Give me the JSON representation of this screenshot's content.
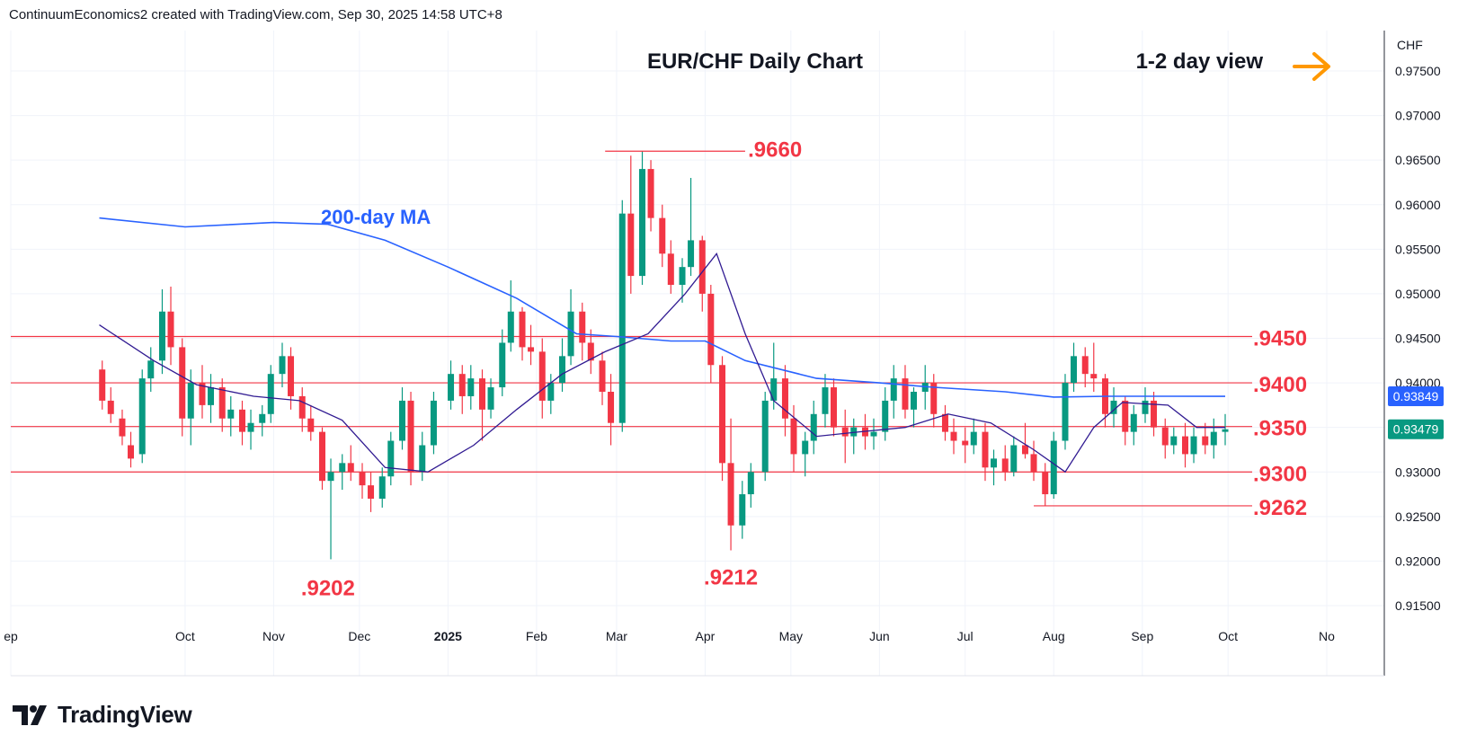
{
  "header": {
    "credit": "ContinuumEconomics2 created with TradingView.com, Sep 30, 2025 14:58 UTC+8"
  },
  "chart": {
    "title": "EUR/CHF Daily Chart",
    "view_label": "1-2 day view",
    "ma_label": "200-day MA",
    "currency": "CHF"
  },
  "footer": {
    "brand": "TradingView"
  },
  "chart_data": {
    "type": "candlestick",
    "title": "EUR/CHF Daily Chart",
    "ylabel": "CHF",
    "ylim": [
      0.913,
      0.9785
    ],
    "y_ticks": [
      "0.97500",
      "0.97000",
      "0.96500",
      "0.96000",
      "0.95500",
      "0.95000",
      "0.94500",
      "0.94000",
      "0.93500",
      "0.93000",
      "0.92500",
      "0.92000",
      "0.91500"
    ],
    "x_ticks": [
      "ep",
      "Oct",
      "Nov",
      "Dec",
      "2025",
      "Feb",
      "Mar",
      "Apr",
      "May",
      "Jun",
      "Jul",
      "Aug",
      "Sep",
      "Oct",
      "No"
    ],
    "horizontal_levels": [
      {
        "label": ".9450",
        "value": 0.9452
      },
      {
        "label": ".9400",
        "value": 0.94
      },
      {
        "label": ".9350",
        "value": 0.9351
      },
      {
        "label": ".9300",
        "value": 0.93
      }
    ],
    "annotations": [
      {
        "label": ".9660",
        "value": 0.966,
        "kind": "high"
      },
      {
        "label": ".9262",
        "value": 0.9262,
        "kind": "low-line"
      },
      {
        "label": ".9202",
        "value": 0.9202,
        "kind": "low"
      },
      {
        "label": ".9212",
        "value": 0.9212,
        "kind": "low"
      }
    ],
    "price_labels": [
      {
        "text": "0.93849",
        "value": 0.93849,
        "series": "200-day MA"
      },
      {
        "text": "0.93479",
        "value": 0.93479,
        "series": "last price"
      }
    ],
    "last_close": 0.93479,
    "series": [
      {
        "name": "200-day MA",
        "color": "#2962ff",
        "points": [
          [
            "2024-09-01",
            0.9585
          ],
          [
            "2024-10-01",
            0.9575
          ],
          [
            "2024-11-01",
            0.958
          ],
          [
            "2024-11-20",
            0.9578
          ],
          [
            "2024-12-10",
            0.956
          ],
          [
            "2025-01-01",
            0.953
          ],
          [
            "2025-01-25",
            0.9495
          ],
          [
            "2025-02-15",
            0.9455
          ],
          [
            "2025-03-01",
            0.9452
          ],
          [
            "2025-03-20",
            0.9447
          ],
          [
            "2025-04-01",
            0.9447
          ],
          [
            "2025-04-15",
            0.9425
          ],
          [
            "2025-05-10",
            0.9405
          ],
          [
            "2025-06-01",
            0.94
          ],
          [
            "2025-06-20",
            0.9395
          ],
          [
            "2025-07-15",
            0.939
          ],
          [
            "2025-08-01",
            0.9384
          ],
          [
            "2025-08-20",
            0.9385
          ],
          [
            "2025-09-10",
            0.9385
          ],
          [
            "2025-09-30",
            0.93849
          ]
        ]
      },
      {
        "name": "Short MA",
        "color": "#311b92",
        "points": [
          [
            "2024-09-01",
            0.9465
          ],
          [
            "2024-09-20",
            0.9425
          ],
          [
            "2024-10-05",
            0.9398
          ],
          [
            "2024-10-25",
            0.9385
          ],
          [
            "2024-11-10",
            0.938
          ],
          [
            "2024-11-25",
            0.9358
          ],
          [
            "2024-12-10",
            0.9305
          ],
          [
            "2024-12-25",
            0.93
          ],
          [
            "2025-01-10",
            0.933
          ],
          [
            "2025-01-25",
            0.937
          ],
          [
            "2025-02-10",
            0.941
          ],
          [
            "2025-02-25",
            0.9435
          ],
          [
            "2025-03-12",
            0.9455
          ],
          [
            "2025-03-25",
            0.95
          ],
          [
            "2025-04-05",
            0.9545
          ],
          [
            "2025-04-15",
            0.9455
          ],
          [
            "2025-04-25",
            0.938
          ],
          [
            "2025-05-10",
            0.934
          ],
          [
            "2025-05-25",
            0.9345
          ],
          [
            "2025-06-10",
            0.935
          ],
          [
            "2025-06-25",
            0.9365
          ],
          [
            "2025-07-10",
            0.9355
          ],
          [
            "2025-07-25",
            0.9325
          ],
          [
            "2025-08-05",
            0.93
          ],
          [
            "2025-08-15",
            0.935
          ],
          [
            "2025-08-25",
            0.9378
          ],
          [
            "2025-09-10",
            0.9375
          ],
          [
            "2025-09-20",
            0.935
          ],
          [
            "2025-09-30",
            0.935
          ]
        ]
      }
    ],
    "candles": [
      [
        "2024-09-02",
        0.9415,
        0.9425,
        0.937,
        0.938
      ],
      [
        "2024-09-05",
        0.938,
        0.9395,
        0.9355,
        0.9365
      ],
      [
        "2024-09-09",
        0.936,
        0.937,
        0.933,
        0.934
      ],
      [
        "2024-09-12",
        0.933,
        0.9345,
        0.9305,
        0.9315
      ],
      [
        "2024-09-16",
        0.932,
        0.9415,
        0.931,
        0.9405
      ],
      [
        "2024-09-19",
        0.9405,
        0.944,
        0.939,
        0.9425
      ],
      [
        "2024-09-23",
        0.9425,
        0.9505,
        0.941,
        0.948
      ],
      [
        "2024-09-26",
        0.948,
        0.9508,
        0.942,
        0.944
      ],
      [
        "2024-09-30",
        0.944,
        0.945,
        0.934,
        0.936
      ],
      [
        "2024-10-03",
        0.936,
        0.9415,
        0.933,
        0.94
      ],
      [
        "2024-10-07",
        0.94,
        0.942,
        0.936,
        0.9375
      ],
      [
        "2024-10-10",
        0.9375,
        0.941,
        0.9355,
        0.9395
      ],
      [
        "2024-10-14",
        0.9395,
        0.9405,
        0.9345,
        0.936
      ],
      [
        "2024-10-17",
        0.936,
        0.9385,
        0.934,
        0.937
      ],
      [
        "2024-10-21",
        0.937,
        0.938,
        0.933,
        0.9345
      ],
      [
        "2024-10-24",
        0.9345,
        0.937,
        0.9325,
        0.9355
      ],
      [
        "2024-10-28",
        0.9355,
        0.9375,
        0.934,
        0.9365
      ],
      [
        "2024-10-31",
        0.9365,
        0.942,
        0.9355,
        0.941
      ],
      [
        "2024-11-04",
        0.941,
        0.9445,
        0.9395,
        0.943
      ],
      [
        "2024-11-07",
        0.943,
        0.944,
        0.937,
        0.9385
      ],
      [
        "2024-11-11",
        0.9385,
        0.9395,
        0.9345,
        0.936
      ],
      [
        "2024-11-14",
        0.936,
        0.9375,
        0.9335,
        0.9345
      ],
      [
        "2024-11-18",
        0.9345,
        0.935,
        0.928,
        0.929
      ],
      [
        "2024-11-21",
        0.929,
        0.9315,
        0.9202,
        0.93
      ],
      [
        "2024-11-25",
        0.93,
        0.932,
        0.928,
        0.931
      ],
      [
        "2024-11-28",
        0.931,
        0.933,
        0.929,
        0.93
      ],
      [
        "2024-12-02",
        0.93,
        0.931,
        0.927,
        0.9285
      ],
      [
        "2024-12-05",
        0.9285,
        0.93,
        0.9255,
        0.927
      ],
      [
        "2024-12-09",
        0.927,
        0.9305,
        0.926,
        0.9295
      ],
      [
        "2024-12-12",
        0.9295,
        0.9345,
        0.9285,
        0.9335
      ],
      [
        "2024-12-16",
        0.9335,
        0.9395,
        0.9325,
        0.938
      ],
      [
        "2024-12-19",
        0.938,
        0.939,
        0.9285,
        0.93
      ],
      [
        "2024-12-23",
        0.93,
        0.9345,
        0.929,
        0.933
      ],
      [
        "2024-12-27",
        0.933,
        0.939,
        0.932,
        0.938
      ],
      [
        "2025-01-02",
        0.938,
        0.9425,
        0.937,
        0.941
      ],
      [
        "2025-01-06",
        0.941,
        0.942,
        0.9365,
        0.9385
      ],
      [
        "2025-01-09",
        0.9385,
        0.942,
        0.937,
        0.9405
      ],
      [
        "2025-01-13",
        0.9405,
        0.9415,
        0.9335,
        0.937
      ],
      [
        "2025-01-16",
        0.937,
        0.9405,
        0.936,
        0.9395
      ],
      [
        "2025-01-20",
        0.9395,
        0.946,
        0.9385,
        0.9445
      ],
      [
        "2025-01-23",
        0.9445,
        0.9515,
        0.9435,
        0.948
      ],
      [
        "2025-01-27",
        0.948,
        0.9485,
        0.9425,
        0.944
      ],
      [
        "2025-01-30",
        0.944,
        0.9465,
        0.942,
        0.9435
      ],
      [
        "2025-02-03",
        0.9435,
        0.945,
        0.936,
        0.938
      ],
      [
        "2025-02-06",
        0.938,
        0.941,
        0.9365,
        0.94
      ],
      [
        "2025-02-10",
        0.94,
        0.945,
        0.939,
        0.943
      ],
      [
        "2025-02-13",
        0.943,
        0.9505,
        0.942,
        0.948
      ],
      [
        "2025-02-17",
        0.948,
        0.949,
        0.9425,
        0.9445
      ],
      [
        "2025-02-20",
        0.9445,
        0.946,
        0.941,
        0.9425
      ],
      [
        "2025-02-24",
        0.9425,
        0.9435,
        0.9375,
        0.939
      ],
      [
        "2025-02-27",
        0.939,
        0.941,
        0.933,
        0.9355
      ],
      [
        "2025-03-03",
        0.9355,
        0.9605,
        0.9345,
        0.959
      ],
      [
        "2025-03-06",
        0.959,
        0.9655,
        0.95,
        0.952
      ],
      [
        "2025-03-10",
        0.952,
        0.966,
        0.951,
        0.964
      ],
      [
        "2025-03-13",
        0.964,
        0.965,
        0.957,
        0.9585
      ],
      [
        "2025-03-17",
        0.9585,
        0.96,
        0.953,
        0.9545
      ],
      [
        "2025-03-20",
        0.9545,
        0.956,
        0.95,
        0.951
      ],
      [
        "2025-03-24",
        0.951,
        0.954,
        0.949,
        0.953
      ],
      [
        "2025-03-27",
        0.953,
        0.963,
        0.952,
        0.956
      ],
      [
        "2025-03-31",
        0.956,
        0.9565,
        0.948,
        0.95
      ],
      [
        "2025-04-03",
        0.95,
        0.951,
        0.94,
        0.942
      ],
      [
        "2025-04-07",
        0.942,
        0.943,
        0.929,
        0.931
      ],
      [
        "2025-04-10",
        0.931,
        0.936,
        0.9212,
        0.924
      ],
      [
        "2025-04-14",
        0.924,
        0.929,
        0.9225,
        0.9275
      ],
      [
        "2025-04-17",
        0.9275,
        0.931,
        0.926,
        0.93
      ],
      [
        "2025-04-22",
        0.93,
        0.939,
        0.929,
        0.938
      ],
      [
        "2025-04-25",
        0.938,
        0.9445,
        0.937,
        0.9405
      ],
      [
        "2025-04-29",
        0.9405,
        0.942,
        0.934,
        0.936
      ],
      [
        "2025-05-02",
        0.936,
        0.9375,
        0.93,
        0.932
      ],
      [
        "2025-05-06",
        0.932,
        0.9345,
        0.9295,
        0.9335
      ],
      [
        "2025-05-09",
        0.9335,
        0.938,
        0.932,
        0.9365
      ],
      [
        "2025-05-13",
        0.9365,
        0.941,
        0.935,
        0.9395
      ],
      [
        "2025-05-16",
        0.9395,
        0.9405,
        0.934,
        0.935
      ],
      [
        "2025-05-20",
        0.935,
        0.937,
        0.931,
        0.934
      ],
      [
        "2025-05-23",
        0.934,
        0.936,
        0.932,
        0.935
      ],
      [
        "2025-05-27",
        0.935,
        0.9365,
        0.9325,
        0.934
      ],
      [
        "2025-05-30",
        0.934,
        0.936,
        0.9325,
        0.9345
      ],
      [
        "2025-06-03",
        0.9345,
        0.9395,
        0.9335,
        0.938
      ],
      [
        "2025-06-06",
        0.938,
        0.942,
        0.936,
        0.9405
      ],
      [
        "2025-06-10",
        0.9405,
        0.942,
        0.936,
        0.937
      ],
      [
        "2025-06-13",
        0.937,
        0.9395,
        0.935,
        0.939
      ],
      [
        "2025-06-17",
        0.939,
        0.942,
        0.937,
        0.94
      ],
      [
        "2025-06-20",
        0.94,
        0.941,
        0.935,
        0.9365
      ],
      [
        "2025-06-24",
        0.9365,
        0.9375,
        0.9335,
        0.9345
      ],
      [
        "2025-06-27",
        0.9345,
        0.936,
        0.932,
        0.9335
      ],
      [
        "2025-07-01",
        0.9335,
        0.935,
        0.931,
        0.933
      ],
      [
        "2025-07-04",
        0.933,
        0.936,
        0.932,
        0.9345
      ],
      [
        "2025-07-08",
        0.9345,
        0.9355,
        0.929,
        0.9305
      ],
      [
        "2025-07-11",
        0.9305,
        0.9325,
        0.9285,
        0.9315
      ],
      [
        "2025-07-15",
        0.9315,
        0.933,
        0.929,
        0.93
      ],
      [
        "2025-07-18",
        0.93,
        0.934,
        0.9295,
        0.933
      ],
      [
        "2025-07-22",
        0.933,
        0.9355,
        0.9315,
        0.932
      ],
      [
        "2025-07-25",
        0.932,
        0.9335,
        0.929,
        0.93
      ],
      [
        "2025-07-29",
        0.93,
        0.931,
        0.9262,
        0.9275
      ],
      [
        "2025-08-01",
        0.9275,
        0.9345,
        0.927,
        0.9335
      ],
      [
        "2025-08-05",
        0.9335,
        0.941,
        0.9325,
        0.94
      ],
      [
        "2025-08-08",
        0.94,
        0.9445,
        0.939,
        0.943
      ],
      [
        "2025-08-12",
        0.943,
        0.944,
        0.9395,
        0.941
      ],
      [
        "2025-08-15",
        0.941,
        0.9445,
        0.939,
        0.9405
      ],
      [
        "2025-08-19",
        0.9405,
        0.941,
        0.935,
        0.9365
      ],
      [
        "2025-08-22",
        0.9365,
        0.9395,
        0.935,
        0.938
      ],
      [
        "2025-08-26",
        0.938,
        0.9385,
        0.933,
        0.9345
      ],
      [
        "2025-08-29",
        0.9345,
        0.9375,
        0.933,
        0.9365
      ],
      [
        "2025-09-02",
        0.9365,
        0.9395,
        0.9355,
        0.938
      ],
      [
        "2025-09-05",
        0.938,
        0.939,
        0.934,
        0.935
      ],
      [
        "2025-09-09",
        0.935,
        0.936,
        0.9315,
        0.933
      ],
      [
        "2025-09-12",
        0.933,
        0.935,
        0.932,
        0.934
      ],
      [
        "2025-09-16",
        0.934,
        0.9355,
        0.9305,
        0.932
      ],
      [
        "2025-09-19",
        0.932,
        0.935,
        0.931,
        0.934
      ],
      [
        "2025-09-23",
        0.934,
        0.9355,
        0.932,
        0.933
      ],
      [
        "2025-09-26",
        0.933,
        0.936,
        0.9315,
        0.9345
      ],
      [
        "2025-09-30",
        0.9345,
        0.9365,
        0.933,
        0.93479
      ]
    ]
  },
  "colors": {
    "up": "#089981",
    "down": "#f23645",
    "level_line": "#f23645",
    "level_text": "#f23645",
    "ma200": "#2962ff",
    "short_ma": "#311b92",
    "arrow": "#ff9800",
    "grid": "#f0f3fa",
    "axis_text": "#131722"
  }
}
